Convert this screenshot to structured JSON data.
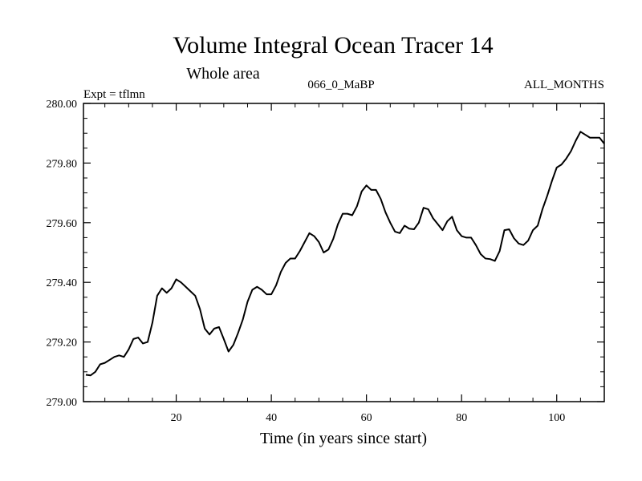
{
  "chart_data": {
    "type": "line",
    "title": "Volume Integral Ocean Tracer 14",
    "subtitle": "Whole area",
    "left_label": "Expt = tflmn",
    "center_label": "066_0_MaBP",
    "right_label": "ALL_MONTHS",
    "xlabel": "Time (in years since start)",
    "ylabel": "",
    "xlim": [
      0.5,
      110
    ],
    "ylim": [
      279.0,
      280.0
    ],
    "x_ticks": [
      20,
      40,
      60,
      80,
      100
    ],
    "y_ticks": [
      279.0,
      279.2,
      279.4,
      279.6,
      279.8,
      280.0
    ],
    "y_tick_labels": [
      "279.00",
      "279.20",
      "279.40",
      "279.60",
      "279.80",
      "280.00"
    ],
    "series": [
      {
        "name": "Ocean Tracer 14",
        "x": [
          1,
          2,
          3,
          4,
          5,
          6,
          7,
          8,
          9,
          10,
          11,
          12,
          13,
          14,
          15,
          16,
          17,
          18,
          19,
          20,
          21,
          22,
          23,
          24,
          25,
          26,
          27,
          28,
          29,
          30,
          31,
          32,
          33,
          34,
          35,
          36,
          37,
          38,
          39,
          40,
          41,
          42,
          43,
          44,
          45,
          46,
          47,
          48,
          49,
          50,
          51,
          52,
          53,
          54,
          55,
          56,
          57,
          58,
          59,
          60,
          61,
          62,
          63,
          64,
          65,
          66,
          67,
          68,
          69,
          70,
          71,
          72,
          73,
          74,
          75,
          76,
          77,
          78,
          79,
          80,
          81,
          82,
          83,
          84,
          85,
          86,
          87,
          88,
          89,
          90,
          91,
          92,
          93,
          94,
          95,
          96,
          97,
          98,
          99,
          100,
          101,
          102,
          103,
          104,
          105,
          106,
          107,
          108,
          109,
          110
        ],
        "values": [
          279.09,
          279.088,
          279.1,
          279.125,
          279.13,
          279.14,
          279.15,
          279.155,
          279.15,
          279.175,
          279.21,
          279.215,
          279.195,
          279.2,
          279.265,
          279.355,
          279.38,
          279.365,
          279.38,
          279.41,
          279.4,
          279.385,
          279.37,
          279.355,
          279.31,
          279.245,
          279.225,
          279.245,
          279.25,
          279.21,
          279.168,
          279.19,
          279.23,
          279.275,
          279.335,
          279.375,
          279.385,
          279.375,
          279.36,
          279.36,
          279.39,
          279.435,
          279.465,
          279.48,
          279.48,
          279.505,
          279.535,
          279.565,
          279.555,
          279.535,
          279.5,
          279.51,
          279.545,
          279.595,
          279.63,
          279.63,
          279.625,
          279.655,
          279.705,
          279.725,
          279.71,
          279.71,
          279.68,
          279.635,
          279.6,
          279.57,
          279.565,
          279.59,
          279.58,
          279.578,
          279.6,
          279.65,
          279.645,
          279.615,
          279.595,
          279.575,
          279.605,
          279.62,
          279.575,
          279.555,
          279.55,
          279.55,
          279.525,
          279.495,
          279.48,
          279.478,
          279.472,
          279.505,
          279.575,
          279.578,
          279.548,
          279.53,
          279.525,
          279.54,
          279.575,
          279.59,
          279.645,
          279.69,
          279.74,
          279.785,
          279.795,
          279.815,
          279.84,
          279.875,
          279.905,
          279.895,
          279.885,
          279.885,
          279.885,
          279.865
        ]
      }
    ]
  }
}
